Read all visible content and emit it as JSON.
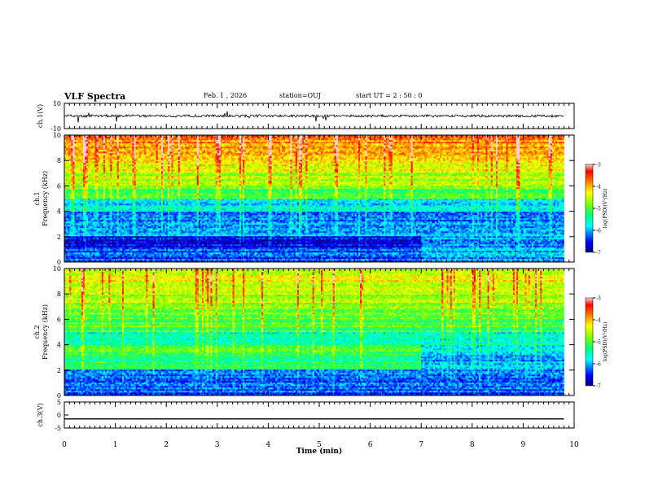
{
  "header": {
    "title": "VLF Spectra",
    "date": "Feb. 1 , 2026",
    "station": "station=OUJ",
    "start_ut": "start  UT =  2 : 50 : 0"
  },
  "colors": {
    "background": "#ffffff",
    "axis": "#000000",
    "trace": "#000000",
    "colormap": [
      "#00007f",
      "#0000ff",
      "#00ffff",
      "#00ff7f",
      "#7fff00",
      "#ffff00",
      "#ff7f00",
      "#ff0000",
      "#ffd0d0"
    ]
  },
  "chart_data": [
    {
      "type": "line",
      "id": "ch1-waveform",
      "ylabel": "ch.1(V)",
      "ylim": [
        -10,
        10
      ],
      "yticks": [
        10,
        -10
      ],
      "xlim": [
        0,
        10
      ],
      "series": [
        {
          "x": [
            0,
            1,
            2,
            3,
            4,
            5,
            6,
            7,
            8,
            9,
            9.8
          ],
          "y": [
            0,
            0,
            0,
            0,
            0,
            0,
            0,
            0,
            0,
            0,
            0
          ]
        }
      ]
    },
    {
      "type": "heatmap",
      "id": "ch1-spectrogram",
      "ylabel": "ch.1\nFrequency (kHz)",
      "xlim": [
        0,
        10
      ],
      "ylim": [
        0,
        10
      ],
      "yticks": [
        0,
        2,
        4,
        6,
        8,
        10
      ],
      "colorbar": {
        "label": "log(PSD)(V²/Hz)",
        "range": [
          -7,
          -3
        ],
        "ticks": [
          -3,
          -4,
          -5,
          -6,
          -7
        ]
      },
      "frequency_kHz": [
        0.5,
        1.5,
        2.5,
        3.5,
        4.5,
        5.5,
        6.5,
        7.5,
        8.5,
        9.5
      ],
      "time_min": [
        0,
        7,
        9.8
      ],
      "log_psd": [
        [
          -6.3,
          -6.0
        ],
        [
          -6.5,
          -6.0
        ],
        [
          -6.0,
          -6.0
        ],
        [
          -6.1,
          -6.1
        ],
        [
          -5.8,
          -5.8
        ],
        [
          -5.0,
          -5.0
        ],
        [
          -4.6,
          -4.6
        ],
        [
          -4.3,
          -4.3
        ],
        [
          -4.0,
          -4.0
        ],
        [
          -3.8,
          -3.8
        ]
      ]
    },
    {
      "type": "heatmap",
      "id": "ch2-spectrogram",
      "ylabel": "ch.2\nFrequency (kHz)",
      "xlim": [
        0,
        10
      ],
      "ylim": [
        0,
        10
      ],
      "yticks": [
        0,
        2,
        4,
        6,
        8,
        10
      ],
      "colorbar": {
        "label": "log(PSD)(V²/Hz)",
        "range": [
          -7,
          -3
        ],
        "ticks": [
          -3,
          -4,
          -5,
          -6,
          -7
        ]
      },
      "frequency_kHz": [
        0.5,
        1.5,
        2.5,
        3.5,
        4.5,
        5.5,
        6.5,
        7.5,
        8.5,
        9.5
      ],
      "time_min": [
        0,
        7,
        9.8
      ],
      "log_psd": [
        [
          -6.3,
          -6.3
        ],
        [
          -6.2,
          -6.2
        ],
        [
          -5.3,
          -6.0
        ],
        [
          -5.1,
          -5.9
        ],
        [
          -5.6,
          -5.7
        ],
        [
          -5.1,
          -5.2
        ],
        [
          -4.9,
          -4.9
        ],
        [
          -4.7,
          -4.7
        ],
        [
          -4.5,
          -4.5
        ],
        [
          -4.4,
          -4.4
        ]
      ]
    },
    {
      "type": "line",
      "id": "ch3-waveform",
      "ylabel": "ch.3(V)",
      "ylim": [
        -5,
        5
      ],
      "yticks": [
        5,
        0,
        -5
      ],
      "xlim": [
        0,
        10
      ],
      "xlabel": "Time  (min)",
      "xticks": [
        0,
        1,
        2,
        3,
        4,
        5,
        6,
        7,
        8,
        9,
        10
      ],
      "series": [
        {
          "x": [
            0,
            9.8
          ],
          "y": [
            -1.5,
            -1.5
          ]
        }
      ]
    }
  ]
}
